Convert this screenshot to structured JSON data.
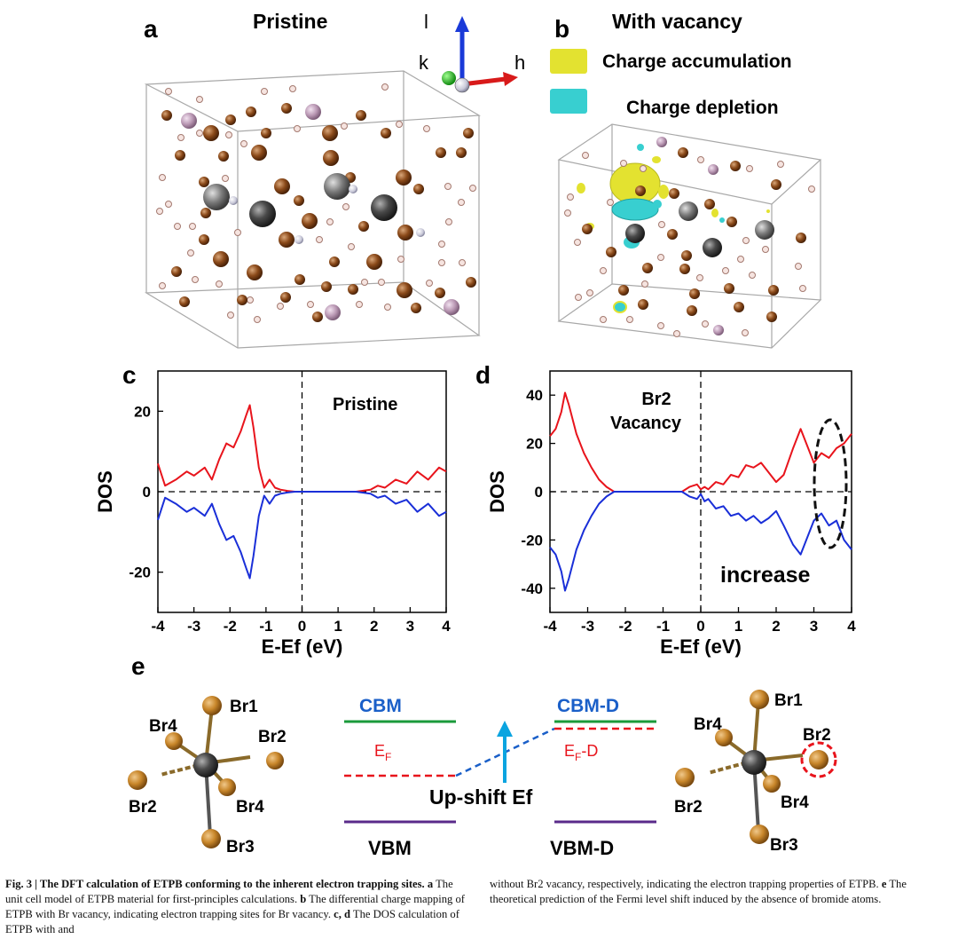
{
  "panels": {
    "a": {
      "letter": "a",
      "title": "Pristine"
    },
    "b": {
      "letter": "b",
      "title": "With vacancy"
    },
    "c": {
      "letter": "c"
    },
    "d": {
      "letter": "d"
    },
    "e": {
      "letter": "e"
    }
  },
  "axes_gizmo": {
    "l": "l",
    "k": "k",
    "h": "h"
  },
  "legend": {
    "accumulation": {
      "label": "Charge accumulation",
      "color": "#e3e230"
    },
    "depletion": {
      "label": "Charge depletion",
      "color": "#38cfd0"
    }
  },
  "colors": {
    "spin_up": "#e8141c",
    "spin_down": "#1a2fd8",
    "cbm": "#1a9a3a",
    "vbm": "#5a2a8a",
    "fermi": "#e8141c",
    "arrow": "#0aa4e0",
    "label_blue": "#1a5fc8",
    "br_atom": "#c8862a"
  },
  "chart_data": [
    {
      "type": "line",
      "panel": "c",
      "annotation": "Pristine",
      "xlabel": "E-Ef (eV)",
      "ylabel": "DOS",
      "xlim": [
        -4,
        4
      ],
      "ylim": [
        -30,
        30
      ],
      "xticks": [
        -4,
        -3,
        -2,
        -1,
        0,
        1,
        2,
        3,
        4
      ],
      "yticks": [
        20,
        0,
        -20
      ],
      "series": [
        {
          "name": "spin up",
          "x": [
            -4,
            -3.8,
            -3.5,
            -3.2,
            -3.0,
            -2.7,
            -2.5,
            -2.3,
            -2.1,
            -1.9,
            -1.7,
            -1.55,
            -1.45,
            -1.35,
            -1.2,
            -1.05,
            -0.9,
            -0.75,
            -0.6,
            -0.4,
            -0.2,
            0,
            0.5,
            1.0,
            1.5,
            1.9,
            2.1,
            2.3,
            2.6,
            2.9,
            3.2,
            3.5,
            3.8,
            4.0
          ],
          "values": [
            7,
            1.5,
            3,
            5,
            4,
            6,
            3,
            8,
            12,
            11,
            15,
            19,
            21.5,
            16,
            6,
            1,
            3,
            1,
            0.5,
            0.2,
            0,
            0,
            0,
            0,
            0,
            0.5,
            1.5,
            1,
            3,
            2,
            5,
            3,
            6,
            5
          ]
        },
        {
          "name": "spin down",
          "x": [
            -4,
            -3.8,
            -3.5,
            -3.2,
            -3.0,
            -2.7,
            -2.5,
            -2.3,
            -2.1,
            -1.9,
            -1.7,
            -1.55,
            -1.45,
            -1.35,
            -1.2,
            -1.05,
            -0.9,
            -0.75,
            -0.6,
            -0.4,
            -0.2,
            0,
            0.5,
            1.0,
            1.5,
            1.9,
            2.1,
            2.3,
            2.6,
            2.9,
            3.2,
            3.5,
            3.8,
            4.0
          ],
          "values": [
            -7,
            -1.5,
            -3,
            -5,
            -4,
            -6,
            -3,
            -8,
            -12,
            -11,
            -15,
            -19,
            -21.5,
            -16,
            -6,
            -1,
            -3,
            -1,
            -0.5,
            -0.2,
            0,
            0,
            0,
            0,
            0,
            -0.5,
            -1.5,
            -1,
            -3,
            -2,
            -5,
            -3,
            -6,
            -5
          ]
        }
      ]
    },
    {
      "type": "line",
      "panel": "d",
      "annotation": [
        "Br2",
        "Vacancy"
      ],
      "note": "increase",
      "xlabel": "E-Ef (eV)",
      "ylabel": "DOS",
      "xlim": [
        -4,
        4
      ],
      "ylim": [
        -50,
        50
      ],
      "xticks": [
        -4,
        -3,
        -2,
        -1,
        0,
        1,
        2,
        3,
        4
      ],
      "yticks": [
        40,
        20,
        0,
        -20,
        -40
      ],
      "series": [
        {
          "name": "spin up",
          "x": [
            -4,
            -3.85,
            -3.7,
            -3.6,
            -3.5,
            -3.3,
            -3.1,
            -2.9,
            -2.7,
            -2.5,
            -2.3,
            -2,
            -1,
            -0.5,
            -0.3,
            -0.1,
            0,
            0.1,
            0.2,
            0.4,
            0.6,
            0.8,
            1.0,
            1.2,
            1.4,
            1.6,
            1.8,
            2.0,
            2.2,
            2.45,
            2.65,
            2.8,
            3.0,
            3.2,
            3.4,
            3.6,
            3.8,
            4.0
          ],
          "values": [
            23,
            26,
            33,
            41,
            36,
            24,
            16,
            10,
            5,
            2,
            0,
            0,
            0,
            0,
            2,
            3,
            1,
            2,
            1,
            4,
            3,
            7,
            6,
            11,
            10,
            12,
            8,
            4,
            7,
            18,
            26,
            20,
            12,
            16,
            14,
            18,
            20,
            24
          ]
        },
        {
          "name": "spin down",
          "x": [
            -4,
            -3.85,
            -3.7,
            -3.6,
            -3.5,
            -3.3,
            -3.1,
            -2.9,
            -2.7,
            -2.5,
            -2.3,
            -2,
            -1,
            -0.5,
            -0.3,
            -0.1,
            0,
            0.1,
            0.2,
            0.4,
            0.6,
            0.8,
            1.0,
            1.2,
            1.4,
            1.6,
            1.8,
            2.0,
            2.2,
            2.45,
            2.65,
            2.8,
            3.0,
            3.2,
            3.4,
            3.6,
            3.8,
            4.0
          ],
          "values": [
            -23,
            -26,
            -33,
            -41,
            -36,
            -24,
            -16,
            -10,
            -5,
            -2,
            0,
            0,
            0,
            0,
            -2,
            -3,
            -1,
            -4,
            -3,
            -7,
            -6,
            -10,
            -9,
            -12,
            -10,
            -13,
            -11,
            -8,
            -14,
            -22,
            -26,
            -20,
            -12,
            -9,
            -14,
            -12,
            -20,
            -24
          ]
        }
      ]
    }
  ],
  "panel_e": {
    "left_atoms": {
      "top": "Br1",
      "upper_left": "Br4",
      "upper_right": "Br2",
      "left": "Br2",
      "lower_right": "Br4",
      "bottom": "Br3"
    },
    "right_atoms": {
      "top": "Br1",
      "upper_left": "Br4",
      "upper_right": "Br2",
      "left": "Br2",
      "lower_right": "Br4",
      "bottom": "Br3"
    },
    "cbm": "CBM",
    "ef": "E",
    "ef_sub": "F",
    "vbm": "VBM",
    "cbm_d": "CBM-D",
    "ef_d": "E",
    "ef_d_sub": "F",
    "ef_d_suffix": "-D",
    "vbm_d": "VBM-D",
    "shift_label": "Up-shift Ef"
  },
  "caption": {
    "left_bold": "Fig. 3 | The DFT calculation of ETPB conforming to the inherent electron trapping sites.",
    "left_a": "a",
    "left_a_text": " The unit cell model of ETPB material for first-principles calculations. ",
    "left_b": "b",
    "left_b_text": " The differential charge mapping of ETPB with Br vacancy, indicating electron trapping sites for Br vacancy. ",
    "left_cd": "c, d",
    "left_cd_text": " The DOS calculation of ETPB with and",
    "right_text": "without Br2 vacancy, respectively, indicating the electron trapping properties of ETPB. ",
    "right_e": "e",
    "right_e_text": " The theoretical prediction of the Fermi level shift induced by the absence of bromide atoms."
  }
}
